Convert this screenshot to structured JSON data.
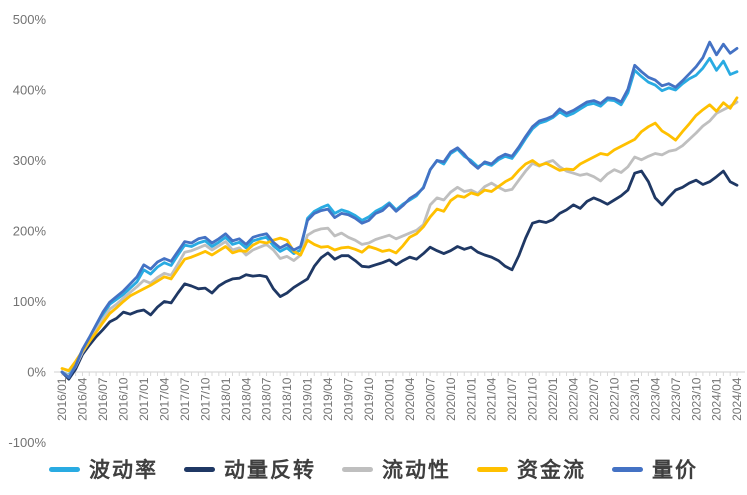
{
  "chart_data": {
    "type": "line",
    "title": "",
    "xlabel": "",
    "ylabel": "",
    "legend_position": "bottom",
    "grid": false,
    "ylim": [
      -100,
      500
    ],
    "y_ticks": {
      "labels": [
        "500%",
        "400%",
        "300%",
        "200%",
        "100%",
        "0%",
        "-100%"
      ],
      "values": [
        500,
        400,
        300,
        200,
        100,
        0,
        -100
      ]
    },
    "x_tick_every": 3,
    "categories": [
      "2016/01",
      "2016/02",
      "2016/03",
      "2016/04",
      "2016/05",
      "2016/06",
      "2016/07",
      "2016/08",
      "2016/09",
      "2016/10",
      "2016/11",
      "2016/12",
      "2017/01",
      "2017/02",
      "2017/03",
      "2017/04",
      "2017/05",
      "2017/06",
      "2017/07",
      "2017/08",
      "2017/09",
      "2017/10",
      "2017/11",
      "2017/12",
      "2018/01",
      "2018/02",
      "2018/03",
      "2018/04",
      "2018/05",
      "2018/06",
      "2018/07",
      "2018/08",
      "2018/09",
      "2018/10",
      "2018/11",
      "2018/12",
      "2019/01",
      "2019/02",
      "2019/03",
      "2019/04",
      "2019/05",
      "2019/06",
      "2019/07",
      "2019/08",
      "2019/09",
      "2019/10",
      "2019/11",
      "2019/12",
      "2020/01",
      "2020/02",
      "2020/03",
      "2020/04",
      "2020/05",
      "2020/06",
      "2020/07",
      "2020/08",
      "2020/09",
      "2020/10",
      "2020/11",
      "2020/12",
      "2021/01",
      "2021/02",
      "2021/03",
      "2021/04",
      "2021/05",
      "2021/06",
      "2021/07",
      "2021/08",
      "2021/09",
      "2021/10",
      "2021/11",
      "2021/12",
      "2022/01",
      "2022/02",
      "2022/03",
      "2022/04",
      "2022/05",
      "2022/06",
      "2022/07",
      "2022/08",
      "2022/09",
      "2022/10",
      "2022/11",
      "2022/12",
      "2023/01",
      "2023/02",
      "2023/03",
      "2023/04",
      "2023/05",
      "2023/06",
      "2023/07",
      "2023/08",
      "2023/09",
      "2023/10",
      "2023/11",
      "2023/12",
      "2024/01",
      "2024/02",
      "2024/03",
      "2024/04"
    ],
    "series": [
      {
        "name": "波动率",
        "color": "#29ABE2",
        "values": [
          0,
          -5,
          12,
          30,
          46,
          63,
          80,
          96,
          103,
          110,
          119,
          128,
          145,
          139,
          149,
          155,
          151,
          166,
          180,
          178,
          183,
          186,
          178,
          184,
          191,
          181,
          184,
          176,
          186,
          189,
          191,
          179,
          171,
          176,
          168,
          173,
          218,
          228,
          233,
          237,
          225,
          230,
          227,
          222,
          215,
          220,
          228,
          233,
          240,
          230,
          238,
          244,
          250,
          262,
          287,
          300,
          295,
          310,
          316,
          306,
          300,
          291,
          296,
          293,
          301,
          306,
          303,
          316,
          331,
          345,
          353,
          356,
          361,
          369,
          363,
          367,
          373,
          379,
          381,
          377,
          386,
          385,
          379,
          396,
          428,
          419,
          411,
          407,
          399,
          403,
          400,
          409,
          416,
          421,
          431,
          445,
          428,
          441,
          422,
          426
        ]
      },
      {
        "name": "动量反转",
        "color": "#1F3864",
        "values": [
          0,
          -10,
          4,
          25,
          38,
          50,
          60,
          71,
          76,
          85,
          82,
          86,
          88,
          81,
          92,
          100,
          98,
          112,
          125,
          122,
          118,
          119,
          112,
          122,
          128,
          132,
          133,
          138,
          136,
          137,
          135,
          118,
          107,
          112,
          120,
          126,
          132,
          150,
          162,
          169,
          160,
          165,
          165,
          158,
          150,
          149,
          152,
          155,
          159,
          152,
          158,
          163,
          160,
          168,
          177,
          172,
          168,
          172,
          178,
          174,
          177,
          170,
          166,
          163,
          158,
          150,
          145,
          165,
          190,
          211,
          214,
          212,
          216,
          225,
          230,
          237,
          232,
          242,
          247,
          243,
          238,
          244,
          250,
          258,
          282,
          285,
          270,
          247,
          237,
          248,
          258,
          262,
          268,
          272,
          266,
          270,
          277,
          285,
          270,
          265
        ]
      },
      {
        "name": "流动性",
        "color": "#BFBFBF",
        "values": [
          0,
          -6,
          8,
          28,
          43,
          59,
          75,
          89,
          96,
          105,
          113,
          121,
          130,
          126,
          134,
          140,
          137,
          153,
          170,
          172,
          176,
          180,
          173,
          179,
          185,
          173,
          176,
          166,
          173,
          177,
          181,
          173,
          161,
          164,
          158,
          166,
          194,
          200,
          203,
          204,
          193,
          197,
          191,
          187,
          181,
          183,
          188,
          191,
          194,
          189,
          193,
          197,
          201,
          209,
          237,
          247,
          244,
          255,
          262,
          256,
          258,
          253,
          263,
          268,
          262,
          257,
          259,
          272,
          285,
          296,
          292,
          297,
          300,
          291,
          285,
          282,
          279,
          281,
          277,
          271,
          281,
          287,
          283,
          291,
          305,
          301,
          306,
          310,
          308,
          313,
          315,
          321,
          330,
          339,
          349,
          356,
          367,
          372,
          377,
          383
        ]
      },
      {
        "name": "资金流",
        "color": "#FFC000",
        "values": [
          5,
          2,
          15,
          30,
          43,
          56,
          70,
          83,
          91,
          100,
          108,
          113,
          118,
          123,
          129,
          135,
          132,
          146,
          160,
          163,
          167,
          171,
          166,
          172,
          178,
          169,
          172,
          171,
          180,
          185,
          183,
          187,
          190,
          187,
          171,
          166,
          187,
          181,
          177,
          178,
          173,
          176,
          177,
          174,
          170,
          178,
          175,
          171,
          173,
          169,
          179,
          191,
          196,
          206,
          220,
          231,
          228,
          243,
          250,
          248,
          254,
          251,
          258,
          256,
          263,
          270,
          275,
          286,
          295,
          300,
          293,
          296,
          291,
          286,
          288,
          287,
          295,
          300,
          305,
          310,
          308,
          315,
          320,
          325,
          330,
          341,
          348,
          353,
          342,
          336,
          329,
          341,
          352,
          364,
          372,
          379,
          370,
          382,
          374,
          389
        ]
      },
      {
        "name": "量价",
        "color": "#4472C4",
        "values": [
          0,
          -8,
          9,
          32,
          49,
          67,
          85,
          99,
          107,
          115,
          125,
          135,
          152,
          146,
          156,
          161,
          157,
          171,
          185,
          183,
          189,
          191,
          183,
          189,
          196,
          186,
          189,
          181,
          191,
          194,
          196,
          184,
          176,
          181,
          173,
          178,
          215,
          225,
          229,
          231,
          219,
          225,
          223,
          218,
          211,
          215,
          225,
          229,
          238,
          228,
          236,
          246,
          252,
          261,
          287,
          300,
          298,
          312,
          318,
          309,
          297,
          289,
          298,
          295,
          304,
          309,
          306,
          319,
          334,
          348,
          356,
          359,
          363,
          373,
          367,
          371,
          377,
          383,
          385,
          381,
          389,
          388,
          383,
          401,
          435,
          426,
          418,
          414,
          406,
          409,
          404,
          413,
          423,
          433,
          446,
          468,
          450,
          465,
          452,
          459
        ]
      }
    ],
    "style": {
      "axis_color": "#D9D9D9",
      "tick_color": "#D9D9D9",
      "label_color": "#737373",
      "legend_text_color": "#3F3F3F",
      "line_width": 2.8
    }
  }
}
